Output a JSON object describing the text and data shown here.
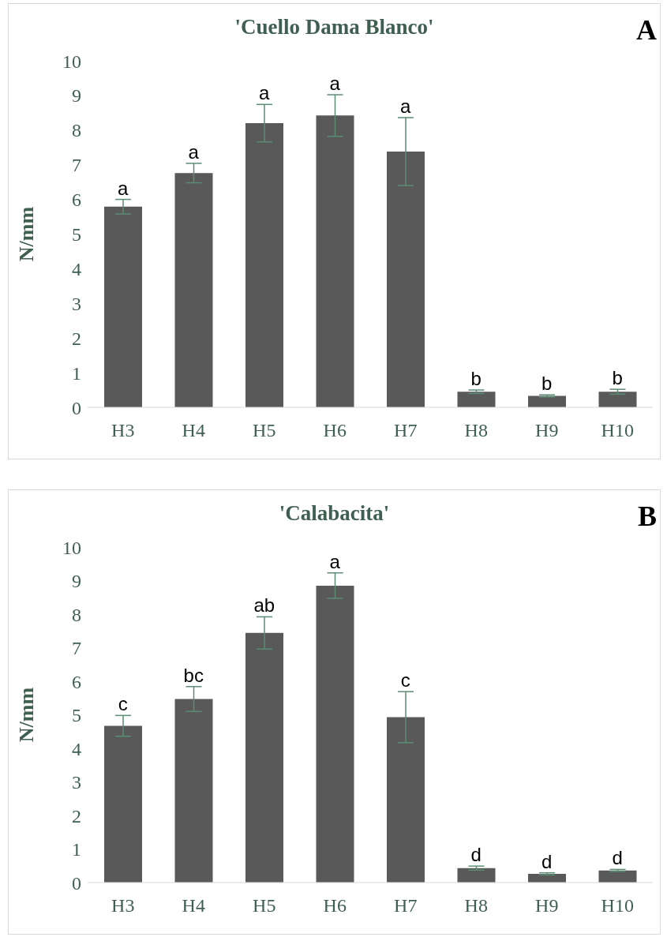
{
  "chart_data": [
    {
      "type": "bar",
      "title": "'Cuello Dama Blanco'",
      "ylabel": "N/mm",
      "categories": [
        "H3",
        "H4",
        "H5",
        "H6",
        "H7",
        "H8",
        "H9",
        "H10"
      ],
      "series": [
        {
          "color": "#595959",
          "values": [
            5.79,
            6.76,
            8.2,
            8.42,
            7.38,
            0.45,
            0.33,
            0.45
          ],
          "errors": [
            0.21,
            0.28,
            0.54,
            0.6,
            0.98,
            0.05,
            0.03,
            0.07
          ]
        }
      ],
      "ylim": [
        0,
        10
      ],
      "yticks": [
        0,
        1,
        2,
        3,
        4,
        5,
        6,
        7,
        8,
        9,
        10
      ],
      "grid": false,
      "legend": false,
      "annotations": [
        "A",
        {
          "text": "a",
          "x": "H3",
          "y": 6.0
        },
        {
          "text": "a",
          "x": "H4",
          "y": 7.04
        },
        {
          "text": "a",
          "x": "H5",
          "y": 8.74
        },
        {
          "text": "a",
          "x": "H6",
          "y": 9.02
        },
        {
          "text": "a",
          "x": "H7",
          "y": 8.36
        },
        {
          "text": "b",
          "x": "H8",
          "y": 0.5
        },
        {
          "text": "b",
          "x": "H9",
          "y": 0.36
        },
        {
          "text": "b",
          "x": "H10",
          "y": 0.52
        }
      ]
    },
    {
      "type": "bar",
      "title": "'Calabacita'",
      "ylabel": "N/mm",
      "categories": [
        "H3",
        "H4",
        "H5",
        "H6",
        "H7",
        "H8",
        "H9",
        "H10"
      ],
      "series": [
        {
          "color": "#595959",
          "values": [
            4.67,
            5.47,
            7.44,
            8.85,
            4.93,
            0.43,
            0.26,
            0.36
          ],
          "errors": [
            0.31,
            0.37,
            0.48,
            0.38,
            0.76,
            0.06,
            0.03,
            0.03
          ]
        }
      ],
      "ylim": [
        0,
        10
      ],
      "yticks": [
        0,
        1,
        2,
        3,
        4,
        5,
        6,
        7,
        8,
        9,
        10
      ],
      "grid": false,
      "legend": false,
      "annotations": [
        "B",
        {
          "text": "c",
          "x": "H3",
          "y": 4.98
        },
        {
          "text": "bc",
          "x": "H4",
          "y": 5.84
        },
        {
          "text": "ab",
          "x": "H5",
          "y": 7.92
        },
        {
          "text": "a",
          "x": "H6",
          "y": 9.23
        },
        {
          "text": "c",
          "x": "H7",
          "y": 5.69
        },
        {
          "text": "d",
          "x": "H8",
          "y": 0.49
        },
        {
          "text": "d",
          "x": "H9",
          "y": 0.29
        },
        {
          "text": "d",
          "x": "H10",
          "y": 0.39
        }
      ]
    }
  ]
}
